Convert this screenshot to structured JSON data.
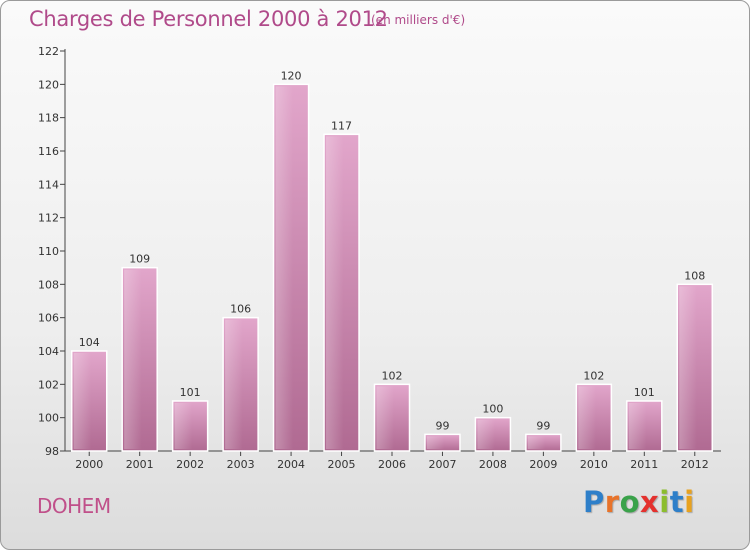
{
  "header": {
    "title": "Charges de Personnel 2000 à 2012",
    "subtitle": "(en milliers d'€)"
  },
  "footer": {
    "commune": "DOHEM",
    "logo_letters": [
      "P",
      "r",
      "o",
      "x",
      "i",
      "t",
      "i"
    ],
    "logo_colors": [
      "#2e7fc9",
      "#e8732a",
      "#3aa24a",
      "#e4312e",
      "#8cbd2e",
      "#2e7fc9",
      "#e8a21f"
    ]
  },
  "colors": {
    "bar": "#d58ab6",
    "bar_dark": "#b2608f",
    "accent": "#b04a8a"
  },
  "chart_data": {
    "type": "bar",
    "categories": [
      "2000",
      "2001",
      "2002",
      "2003",
      "2004",
      "2005",
      "2006",
      "2007",
      "2008",
      "2009",
      "2010",
      "2011",
      "2012"
    ],
    "values": [
      104,
      109,
      101,
      106,
      120,
      117,
      102,
      99,
      100,
      99,
      102,
      101,
      108
    ],
    "title": "Charges de Personnel 2000 à 2012",
    "xlabel": "",
    "ylabel": "",
    "ylim": [
      98,
      122
    ],
    "yticks": [
      98,
      100,
      102,
      104,
      106,
      108,
      110,
      112,
      114,
      116,
      118,
      120,
      122
    ],
    "grid": false,
    "legend": "none"
  }
}
